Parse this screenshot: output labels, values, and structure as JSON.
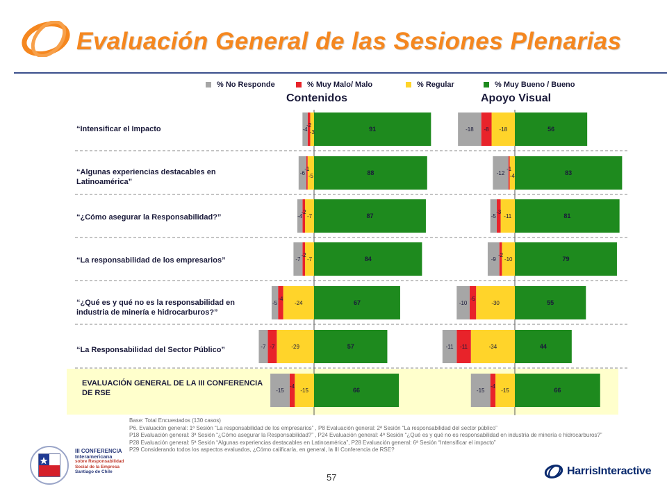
{
  "title": "Evaluación General de las Sesiones Plenarias",
  "legend": [
    {
      "label": "% No Responde",
      "color": "#a6a6a6"
    },
    {
      "label": "% Muy Malo/ Malo",
      "color": "#e8232a"
    },
    {
      "label": "% Regular",
      "color": "#ffd42a"
    },
    {
      "label": "% Muy Bueno / Bueno",
      "color": "#1e8a1e"
    }
  ],
  "chart_data": [
    {
      "type": "bar",
      "title": "Contenidos",
      "categories": [
        "“Intensificar el Impacto",
        "“Algunas experiencias destacables en Latinoamérica”",
        "“¿Cómo asegurar la Responsabilidad?”",
        "“La responsabilidad de los empresarios”",
        "“¿Qué es y qué no es la responsabilidad en industria de minería e hidrocarburos?”",
        "“La Responsabilidad del Sector Público”",
        "EVALUACIÓN GENERAL DE LA III CONFERENCIA DE RSE"
      ],
      "series": [
        {
          "name": "% No Responde",
          "values": [
            4,
            6,
            4,
            7,
            5,
            7,
            15
          ],
          "labels": [
            "-4",
            "-6",
            "-4",
            "-7",
            "-5",
            "-7",
            "-15"
          ]
        },
        {
          "name": "% Muy Malo/ Malo",
          "values": [
            2,
            1,
            2,
            2,
            4,
            7,
            4
          ],
          "labels": [
            "-2",
            "-1",
            "-2",
            "-2",
            "-4",
            "-7",
            "-4"
          ]
        },
        {
          "name": "% Regular",
          "values": [
            3,
            5,
            7,
            7,
            24,
            29,
            15
          ],
          "labels": [
            "-3",
            "-5",
            "-7",
            "-7",
            "-24",
            "-29",
            "-15"
          ]
        },
        {
          "name": "% Muy Bueno / Bueno",
          "values": [
            91,
            88,
            87,
            84,
            67,
            57,
            66
          ],
          "labels": [
            "91",
            "88",
            "87",
            "84",
            "67",
            "57",
            "66"
          ]
        }
      ]
    },
    {
      "type": "bar",
      "title": "Apoyo Visual",
      "categories": [
        "“Intensificar el Impacto",
        "“Algunas experiencias destacables en Latinoamérica”",
        "“¿Cómo asegurar la Responsabilidad?”",
        "“La responsabilidad de los empresarios”",
        "“¿Qué es y qué no es la responsabilidad en industria de minería e hidrocarburos?”",
        "“La Responsabilidad del Sector Público”",
        "EVALUACIÓN GENERAL DE LA III CONFERENCIA DE RSE"
      ],
      "series": [
        {
          "name": "% No Responde",
          "values": [
            18,
            12,
            5,
            9,
            10,
            11,
            15
          ],
          "labels": [
            "-18",
            "-12",
            "-5",
            "-9",
            "-10",
            "-11",
            "-15"
          ]
        },
        {
          "name": "% Muy Malo/ Malo",
          "values": [
            8,
            1,
            3,
            2,
            5,
            11,
            4
          ],
          "labels": [
            "-8",
            "-1",
            "-3",
            "-2",
            "-5",
            "-11",
            "-4"
          ]
        },
        {
          "name": "% Regular",
          "values": [
            18,
            4,
            11,
            10,
            30,
            34,
            15
          ],
          "labels": [
            "-18",
            "-4",
            "-11",
            "-10",
            "-30",
            "-34",
            "-15"
          ]
        },
        {
          "name": "% Muy Bueno / Bueno",
          "values": [
            56,
            83,
            81,
            79,
            55,
            44,
            66
          ],
          "labels": [
            "56",
            "83",
            "81",
            "79",
            "55",
            "44",
            "66"
          ]
        }
      ]
    }
  ],
  "row_labels": [
    "“Intensificar el Impacto",
    "“Algunas experiencias destacables en Latinoamérica”",
    "“¿Cómo asegurar la Responsabilidad?”",
    "“La responsabilidad de los empresarios”",
    "“¿Qué es y qué no es la responsabilidad en industria de minería e hidrocarburos?”",
    "“La Responsabilidad del Sector Público”",
    "EVALUACIÓN GENERAL DE LA III CONFERENCIA DE RSE"
  ],
  "base_notes": [
    "Base: Total Encuestados (130 casos)",
    "P6. Evaluación general: 1ª Sesión “La responsabilidad de los empresarios” , P8 Evaluación general: 2ª Sesión “La responsabilidad del sector público”",
    "P18 Evaluación general: 3ª Sesión “¿Cómo asegurar la Responsabilidad?” , P24 Evaluación general: 4ª Sesión “¿Qué es y qué no es responsabilidad en industria de minería e hidrocarburos?”",
    "P28 Evaluación general: 5ª Sesión “Algunas experiencias destacables en Latinoamérica”, P28 Evaluación general: 6ª Sesión “Intensificar el impacto”",
    "P29 Considerando todos los aspectos evaluados, ¿Cómo calificaría, en general, la III Conferencia de RSE?"
  ],
  "page_number": "57",
  "conference_logo_lines": [
    "III CONFERENCIA",
    "Interamericana",
    "sobre Responsabilidad",
    "Social de la Empresa",
    "Santiago de Chile"
  ],
  "harris_logo": "HarrisInteractive",
  "colors": {
    "title": "#f5871f",
    "rule": "#3a4f8c"
  }
}
